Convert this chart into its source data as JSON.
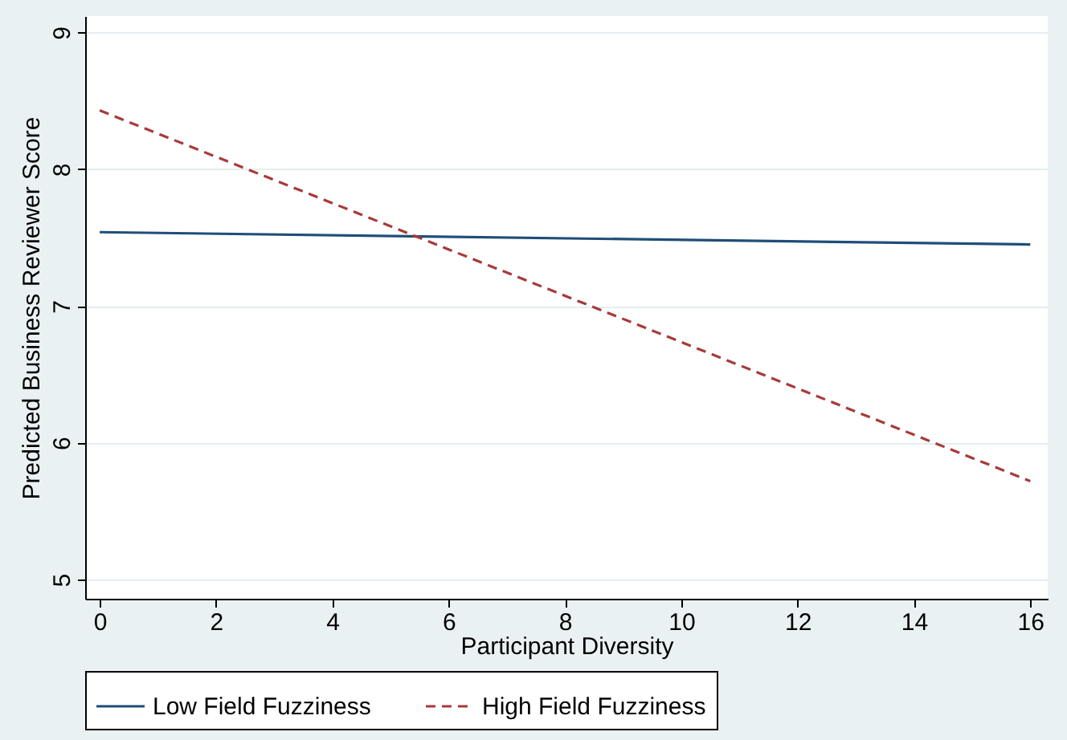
{
  "chart_data": {
    "type": "line",
    "xlabel": "Participant Diversity",
    "ylabel": "Predicted Business Reviewer Score",
    "x": [
      0,
      16
    ],
    "series": [
      {
        "name": "Low Field Fuzziness",
        "color": "#1f4e79",
        "values": [
          7.54,
          7.45
        ],
        "line_style": "solid"
      },
      {
        "name": "High Field Fuzziness",
        "color": "#a83a3a",
        "values": [
          8.43,
          5.72
        ],
        "line_style": "dashed"
      }
    ],
    "xlim": [
      -0.25,
      16.3
    ],
    "xticks": [
      0,
      2,
      4,
      6,
      8,
      10,
      12,
      14,
      16
    ],
    "ylim": [
      4.86,
      9.12
    ],
    "yticks": [
      5,
      6,
      7,
      8,
      9
    ],
    "grid": "y",
    "legend": "bottom",
    "marker": "none"
  }
}
